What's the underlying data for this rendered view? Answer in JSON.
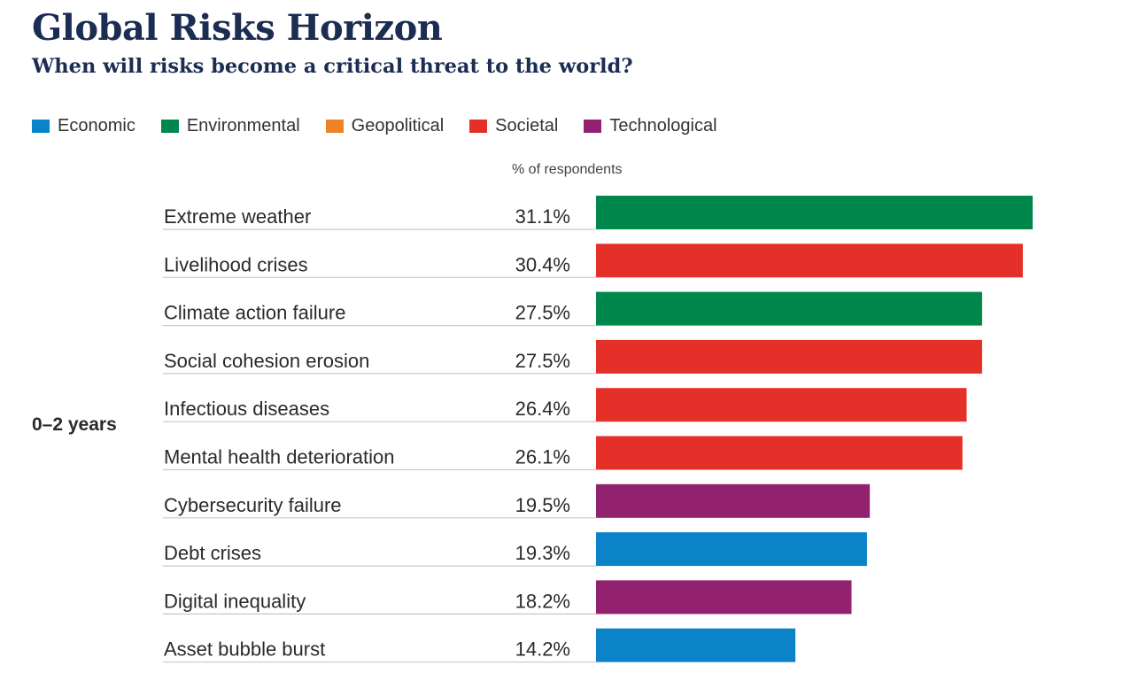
{
  "colors": {
    "economic": "#0b83c9",
    "environmental": "#00874c",
    "geopolitical": "#ef8227",
    "societal": "#e52f29",
    "technological": "#922170",
    "title": "#1b2d52",
    "rule": "#c8c8c8"
  },
  "title": "Global Risks Horizon",
  "subtitle": "When will risks become a critical threat to the world?",
  "legend": [
    {
      "label": "Economic",
      "color": "#0b83c9"
    },
    {
      "label": "Environmental",
      "color": "#00874c"
    },
    {
      "label": "Geopolitical",
      "color": "#ef8227"
    },
    {
      "label": "Societal",
      "color": "#e52f29"
    },
    {
      "label": "Technological",
      "color": "#922170"
    }
  ],
  "unit_label": "% of respondents",
  "group_label": "0–2 years",
  "chart_data": {
    "type": "bar",
    "orientation": "horizontal",
    "title": "Global Risks Horizon",
    "subtitle": "When will risks become a critical threat to the world?",
    "xlabel": "% of respondents",
    "ylabel": "",
    "group": "0–2 years",
    "xlim": [
      0,
      31.1
    ],
    "grid": false,
    "legend_position": "top-left",
    "categories": [
      "Extreme weather",
      "Livelihood crises",
      "Climate action failure",
      "Social cohesion erosion",
      "Infectious diseases",
      "Mental health deterioration",
      "Cybersecurity failure",
      "Debt crises",
      "Digital inequality",
      "Asset bubble burst"
    ],
    "values": [
      31.1,
      30.4,
      27.5,
      27.5,
      26.4,
      26.1,
      19.5,
      19.3,
      18.2,
      14.2
    ],
    "value_labels": [
      "31.1%",
      "30.4%",
      "27.5%",
      "27.5%",
      "26.4%",
      "26.1%",
      "19.5%",
      "19.3%",
      "18.2%",
      "14.2%"
    ],
    "risk_category": [
      "Environmental",
      "Societal",
      "Environmental",
      "Societal",
      "Societal",
      "Societal",
      "Technological",
      "Economic",
      "Technological",
      "Economic"
    ]
  }
}
